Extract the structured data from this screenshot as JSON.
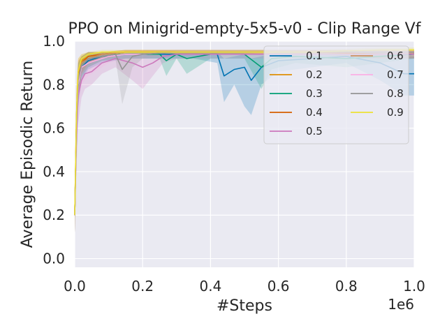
{
  "chart_data": {
    "type": "line",
    "title": "PPO on Minigrid-empty-5x5-v0 - Clip Range Vf",
    "xlabel": "#Steps",
    "ylabel": "Average Episodic Return",
    "x_offset_label": "1e6",
    "xlim": [
      0,
      1.0
    ],
    "ylim": [
      -0.04,
      1.0
    ],
    "xticks": [
      0.0,
      0.2,
      0.4,
      0.6,
      0.8,
      1.0
    ],
    "xtick_labels": [
      "0.0",
      "0.2",
      "0.4",
      "0.6",
      "0.8",
      "1.0"
    ],
    "yticks": [
      0.0,
      0.2,
      0.4,
      0.6,
      0.8,
      1.0
    ],
    "ytick_labels": [
      "0.0",
      "0.2",
      "0.4",
      "0.6",
      "0.8",
      "1.0"
    ],
    "grid": true,
    "legend_position": "top-right",
    "series": [
      {
        "name": "0.1",
        "color": "#0173b2",
        "x": [
          0.0,
          0.005,
          0.01,
          0.02,
          0.04,
          0.08,
          0.15,
          0.25,
          0.35,
          0.42,
          0.44,
          0.47,
          0.5,
          0.52,
          0.55,
          0.6,
          0.7,
          0.8,
          0.9,
          0.97,
          1.0
        ],
        "y": [
          0.2,
          0.6,
          0.8,
          0.88,
          0.91,
          0.93,
          0.94,
          0.94,
          0.94,
          0.94,
          0.84,
          0.87,
          0.88,
          0.82,
          0.88,
          0.91,
          0.92,
          0.93,
          0.9,
          0.85,
          0.85
        ],
        "lower": [
          0.12,
          0.45,
          0.7,
          0.82,
          0.87,
          0.9,
          0.92,
          0.92,
          0.92,
          0.9,
          0.72,
          0.8,
          0.7,
          0.66,
          0.8,
          0.86,
          0.88,
          0.9,
          0.82,
          0.75,
          0.75
        ],
        "upper": [
          0.28,
          0.72,
          0.88,
          0.92,
          0.94,
          0.95,
          0.95,
          0.95,
          0.95,
          0.95,
          0.92,
          0.93,
          0.94,
          0.92,
          0.93,
          0.95,
          0.95,
          0.95,
          0.95,
          0.93,
          0.93
        ]
      },
      {
        "name": "0.2",
        "color": "#de8f05",
        "x": [
          0.0,
          0.005,
          0.01,
          0.02,
          0.04,
          0.08,
          0.15,
          0.3,
          0.5,
          0.7,
          0.9,
          1.0
        ],
        "y": [
          0.2,
          0.65,
          0.86,
          0.91,
          0.93,
          0.94,
          0.95,
          0.95,
          0.95,
          0.95,
          0.95,
          0.95
        ],
        "lower": [
          0.12,
          0.5,
          0.78,
          0.87,
          0.9,
          0.92,
          0.94,
          0.94,
          0.94,
          0.94,
          0.94,
          0.94
        ],
        "upper": [
          0.28,
          0.78,
          0.92,
          0.94,
          0.95,
          0.95,
          0.96,
          0.96,
          0.96,
          0.96,
          0.96,
          0.96
        ]
      },
      {
        "name": "0.3",
        "color": "#029e73",
        "x": [
          0.0,
          0.005,
          0.01,
          0.02,
          0.04,
          0.08,
          0.15,
          0.25,
          0.27,
          0.3,
          0.33,
          0.4,
          0.5,
          0.55,
          0.58,
          0.65,
          0.8,
          1.0
        ],
        "y": [
          0.2,
          0.6,
          0.82,
          0.89,
          0.92,
          0.93,
          0.94,
          0.94,
          0.91,
          0.94,
          0.92,
          0.94,
          0.94,
          0.88,
          0.92,
          0.93,
          0.92,
          0.94
        ],
        "lower": [
          0.12,
          0.45,
          0.72,
          0.83,
          0.88,
          0.91,
          0.92,
          0.92,
          0.84,
          0.92,
          0.85,
          0.92,
          0.92,
          0.78,
          0.87,
          0.9,
          0.88,
          0.92
        ],
        "upper": [
          0.28,
          0.72,
          0.9,
          0.93,
          0.95,
          0.95,
          0.95,
          0.95,
          0.94,
          0.95,
          0.95,
          0.95,
          0.95,
          0.94,
          0.95,
          0.95,
          0.95,
          0.95
        ]
      },
      {
        "name": "0.4",
        "color": "#d55e00",
        "x": [
          0.0,
          0.005,
          0.01,
          0.02,
          0.04,
          0.08,
          0.15,
          0.3,
          0.5,
          0.7,
          0.9,
          1.0
        ],
        "y": [
          0.2,
          0.62,
          0.84,
          0.9,
          0.93,
          0.94,
          0.95,
          0.95,
          0.95,
          0.95,
          0.94,
          0.94
        ],
        "lower": [
          0.12,
          0.48,
          0.75,
          0.85,
          0.9,
          0.92,
          0.94,
          0.94,
          0.94,
          0.94,
          0.92,
          0.92
        ],
        "upper": [
          0.28,
          0.75,
          0.91,
          0.93,
          0.95,
          0.95,
          0.96,
          0.96,
          0.96,
          0.96,
          0.95,
          0.95
        ]
      },
      {
        "name": "0.5",
        "color": "#cc78bc",
        "x": [
          0.0,
          0.005,
          0.01,
          0.02,
          0.03,
          0.05,
          0.08,
          0.12,
          0.17,
          0.2,
          0.23,
          0.26,
          0.3,
          0.4,
          0.5,
          0.6,
          0.8,
          1.0
        ],
        "y": [
          0.2,
          0.55,
          0.75,
          0.82,
          0.85,
          0.86,
          0.9,
          0.92,
          0.9,
          0.88,
          0.9,
          0.93,
          0.94,
          0.94,
          0.94,
          0.94,
          0.94,
          0.94
        ],
        "lower": [
          0.12,
          0.4,
          0.62,
          0.74,
          0.78,
          0.8,
          0.85,
          0.88,
          0.82,
          0.78,
          0.84,
          0.9,
          0.92,
          0.92,
          0.92,
          0.92,
          0.92,
          0.92
        ],
        "upper": [
          0.28,
          0.68,
          0.85,
          0.89,
          0.91,
          0.92,
          0.93,
          0.94,
          0.94,
          0.94,
          0.94,
          0.95,
          0.95,
          0.95,
          0.95,
          0.95,
          0.95,
          0.95
        ]
      },
      {
        "name": "0.6",
        "color": "#ca9161",
        "x": [
          0.0,
          0.005,
          0.01,
          0.02,
          0.04,
          0.08,
          0.15,
          0.3,
          0.5,
          0.7,
          0.9,
          1.0
        ],
        "y": [
          0.2,
          0.6,
          0.83,
          0.9,
          0.92,
          0.94,
          0.95,
          0.95,
          0.95,
          0.95,
          0.95,
          0.95
        ],
        "lower": [
          0.12,
          0.45,
          0.74,
          0.85,
          0.89,
          0.92,
          0.94,
          0.94,
          0.94,
          0.94,
          0.94,
          0.94
        ],
        "upper": [
          0.28,
          0.72,
          0.9,
          0.93,
          0.95,
          0.95,
          0.96,
          0.96,
          0.96,
          0.96,
          0.96,
          0.96
        ]
      },
      {
        "name": "0.7",
        "color": "#fbafe4",
        "x": [
          0.0,
          0.005,
          0.01,
          0.02,
          0.04,
          0.06,
          0.1,
          0.15,
          0.2,
          0.3,
          0.5,
          0.7,
          0.9,
          1.0
        ],
        "y": [
          0.2,
          0.58,
          0.8,
          0.88,
          0.9,
          0.91,
          0.93,
          0.94,
          0.94,
          0.95,
          0.95,
          0.95,
          0.95,
          0.95
        ],
        "lower": [
          0.12,
          0.42,
          0.68,
          0.8,
          0.84,
          0.86,
          0.9,
          0.92,
          0.92,
          0.94,
          0.94,
          0.94,
          0.94,
          0.94
        ],
        "upper": [
          0.28,
          0.7,
          0.88,
          0.92,
          0.94,
          0.95,
          0.95,
          0.95,
          0.95,
          0.96,
          0.96,
          0.96,
          0.96,
          0.96
        ]
      },
      {
        "name": "0.8",
        "color": "#949494",
        "x": [
          0.0,
          0.005,
          0.01,
          0.02,
          0.04,
          0.08,
          0.12,
          0.14,
          0.17,
          0.2,
          0.3,
          0.5,
          0.7,
          0.9,
          1.0
        ],
        "y": [
          0.2,
          0.6,
          0.82,
          0.89,
          0.92,
          0.93,
          0.94,
          0.87,
          0.93,
          0.94,
          0.95,
          0.95,
          0.95,
          0.95,
          0.95
        ],
        "lower": [
          0.12,
          0.45,
          0.72,
          0.84,
          0.88,
          0.91,
          0.92,
          0.71,
          0.88,
          0.92,
          0.94,
          0.94,
          0.94,
          0.94,
          0.94
        ],
        "upper": [
          0.28,
          0.72,
          0.9,
          0.93,
          0.95,
          0.95,
          0.95,
          0.94,
          0.95,
          0.95,
          0.96,
          0.96,
          0.96,
          0.96,
          0.96
        ]
      },
      {
        "name": "0.9",
        "color": "#ece133",
        "x": [
          0.0,
          0.005,
          0.01,
          0.02,
          0.04,
          0.08,
          0.15,
          0.3,
          0.5,
          0.7,
          0.9,
          1.0
        ],
        "y": [
          0.2,
          0.65,
          0.86,
          0.92,
          0.94,
          0.95,
          0.95,
          0.95,
          0.95,
          0.95,
          0.96,
          0.96
        ],
        "lower": [
          0.12,
          0.5,
          0.78,
          0.88,
          0.92,
          0.94,
          0.94,
          0.94,
          0.94,
          0.94,
          0.95,
          0.95
        ],
        "upper": [
          0.28,
          0.78,
          0.92,
          0.94,
          0.95,
          0.96,
          0.96,
          0.96,
          0.96,
          0.96,
          0.97,
          0.97
        ]
      }
    ]
  }
}
